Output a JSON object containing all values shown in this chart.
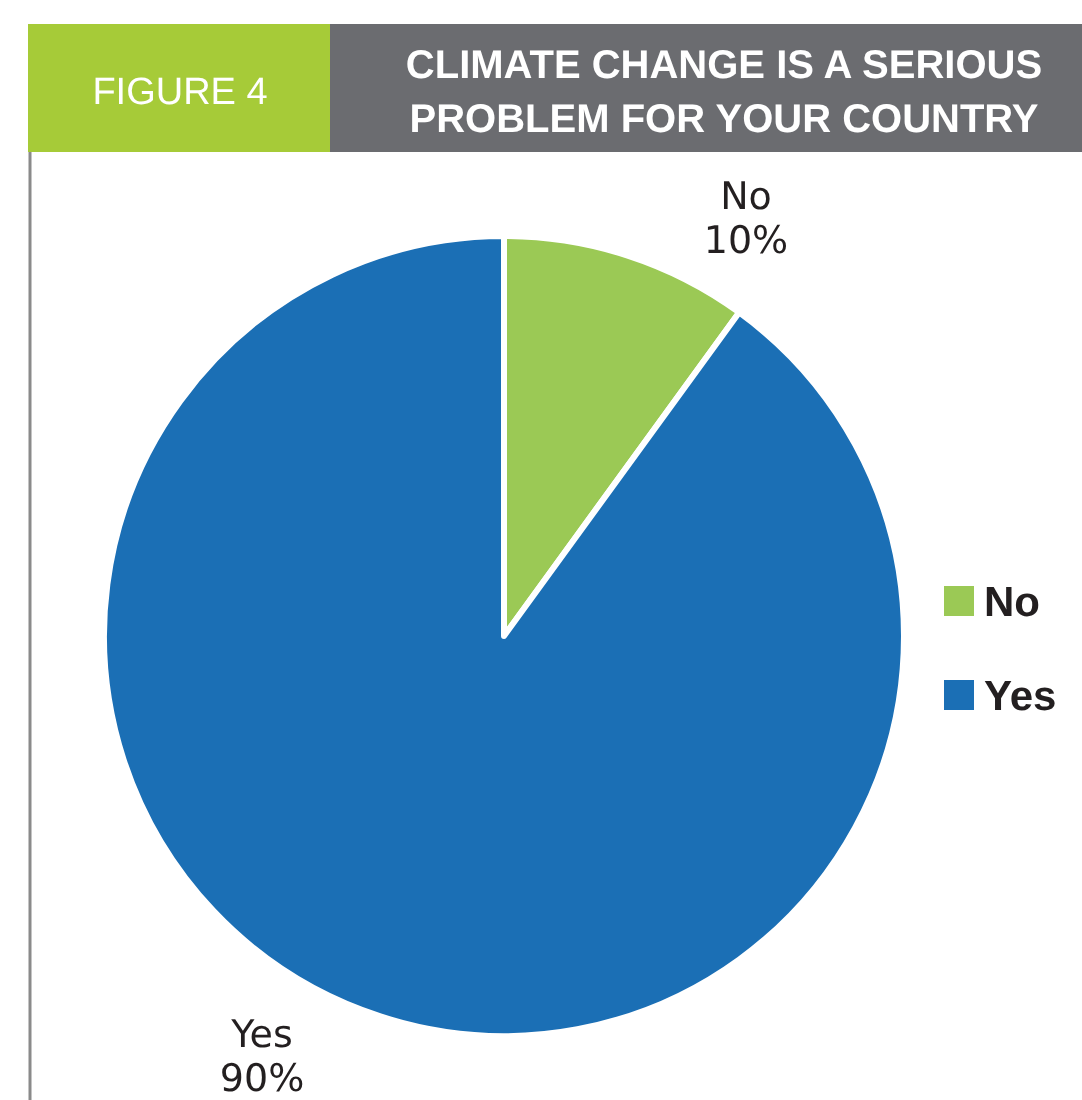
{
  "chart_data": {
    "type": "pie",
    "title": "CLIMATE CHANGE IS A SERIOUS PROBLEM FOR YOUR COUNTRY",
    "annotations": [
      "FIGURE 4"
    ],
    "categories": [
      "No",
      "Yes"
    ],
    "values": [
      10,
      90
    ],
    "colors": [
      "#9bc955",
      "#1b6fb5"
    ],
    "value_labels": [
      "10%",
      "90%"
    ],
    "legend": "right"
  }
}
